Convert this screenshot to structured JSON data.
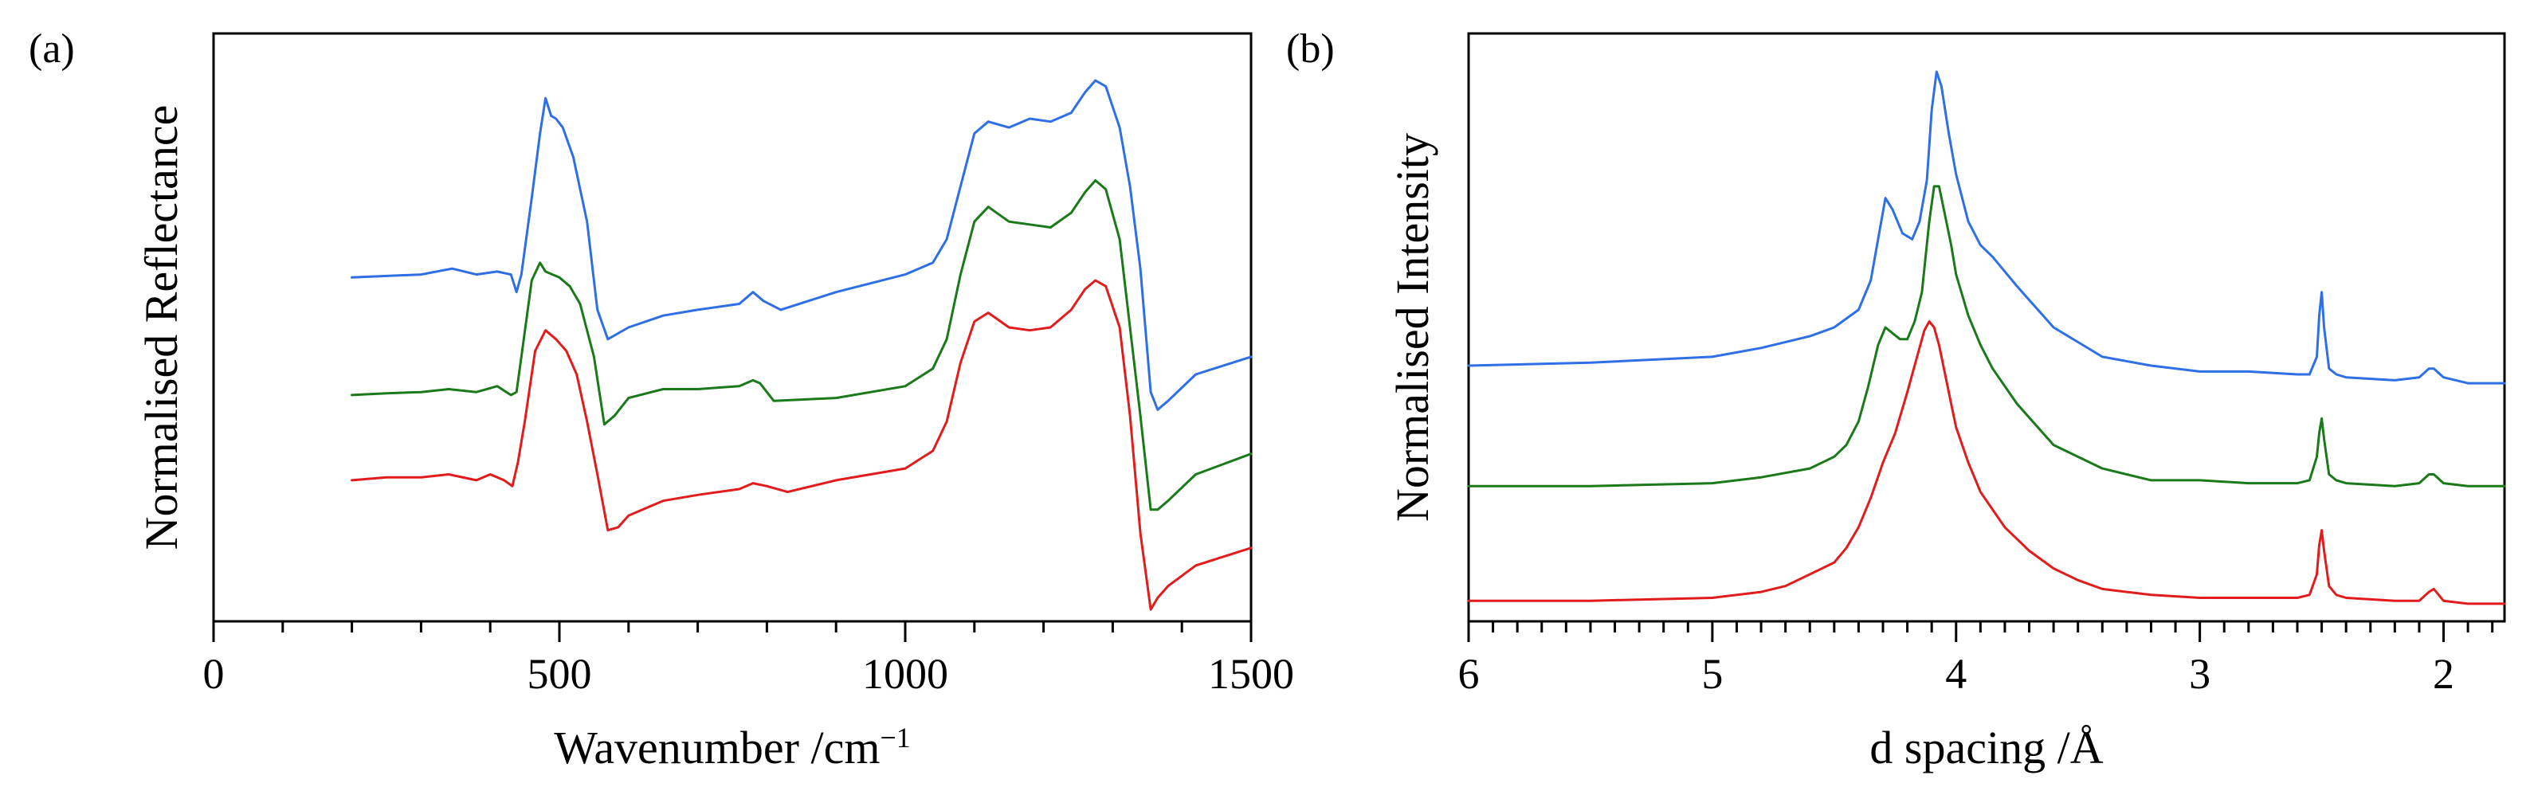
{
  "colors": {
    "blue": "#2e6fe6",
    "green": "#1a7a1a",
    "red": "#e21c1c"
  },
  "chart_data": [
    {
      "id": "a",
      "panel_label": "(a)",
      "type": "line",
      "title": "",
      "xlabel": "Wavenumber /cm",
      "xlabel_sup": "−1",
      "ylabel": "Normalised Reflectance",
      "xlim": [
        0,
        1500
      ],
      "ylim": [
        0,
        10
      ],
      "x_reversed": false,
      "major_ticks": [
        0,
        500,
        1000,
        1500
      ],
      "tick_labels": [
        "0",
        "500",
        "1000",
        "1500"
      ],
      "minor_step": 100,
      "y_ticks": false,
      "grid": false,
      "legend": "none",
      "series": [
        {
          "name": "top (blue)",
          "color": "#2e6fe6",
          "x": [
            200,
            300,
            345,
            380,
            410,
            430,
            438,
            445,
            460,
            472,
            480,
            488,
            495,
            505,
            520,
            540,
            555,
            570,
            600,
            650,
            700,
            760,
            780,
            795,
            820,
            900,
            1000,
            1040,
            1060,
            1080,
            1100,
            1120,
            1150,
            1180,
            1210,
            1240,
            1260,
            1275,
            1290,
            1310,
            1325,
            1340,
            1355,
            1365,
            1380,
            1420,
            1500
          ],
          "y": [
            5.85,
            5.9,
            6.0,
            5.9,
            5.95,
            5.9,
            5.6,
            5.9,
            7.2,
            8.3,
            8.9,
            8.6,
            8.55,
            8.4,
            7.9,
            6.8,
            5.3,
            4.8,
            5.0,
            5.2,
            5.3,
            5.4,
            5.6,
            5.45,
            5.3,
            5.6,
            5.9,
            6.1,
            6.5,
            7.4,
            8.3,
            8.5,
            8.4,
            8.55,
            8.5,
            8.65,
            9.0,
            9.2,
            9.1,
            8.4,
            7.4,
            6.0,
            3.9,
            3.6,
            3.75,
            4.2,
            4.5
          ]
        },
        {
          "name": "middle (green)",
          "color": "#1a7a1a",
          "x": [
            200,
            250,
            300,
            340,
            380,
            410,
            430,
            438,
            445,
            460,
            472,
            480,
            490,
            500,
            515,
            530,
            550,
            565,
            580,
            600,
            650,
            700,
            760,
            780,
            790,
            810,
            900,
            1000,
            1040,
            1060,
            1080,
            1100,
            1120,
            1150,
            1180,
            1210,
            1240,
            1260,
            1275,
            1290,
            1310,
            1325,
            1340,
            1355,
            1365,
            1380,
            1420,
            1500
          ],
          "y": [
            3.85,
            3.88,
            3.9,
            3.95,
            3.9,
            4.0,
            3.85,
            3.9,
            4.5,
            5.8,
            6.1,
            5.95,
            5.9,
            5.85,
            5.7,
            5.4,
            4.5,
            3.35,
            3.5,
            3.8,
            3.95,
            3.95,
            4.0,
            4.1,
            4.05,
            3.75,
            3.8,
            4.0,
            4.3,
            4.8,
            5.9,
            6.8,
            7.05,
            6.8,
            6.75,
            6.7,
            6.95,
            7.3,
            7.5,
            7.35,
            6.5,
            5.0,
            3.5,
            1.9,
            1.9,
            2.05,
            2.5,
            2.85
          ]
        },
        {
          "name": "bottom (red)",
          "color": "#e21c1c",
          "x": [
            200,
            250,
            300,
            340,
            380,
            400,
            420,
            432,
            440,
            450,
            465,
            480,
            495,
            510,
            525,
            540,
            555,
            570,
            585,
            600,
            650,
            700,
            760,
            780,
            800,
            830,
            900,
            1000,
            1040,
            1060,
            1080,
            1100,
            1120,
            1150,
            1180,
            1210,
            1240,
            1260,
            1275,
            1290,
            1310,
            1325,
            1340,
            1355,
            1365,
            1380,
            1420,
            1500
          ],
          "y": [
            2.4,
            2.45,
            2.45,
            2.5,
            2.4,
            2.5,
            2.4,
            2.3,
            2.7,
            3.4,
            4.6,
            4.95,
            4.8,
            4.6,
            4.2,
            3.4,
            2.5,
            1.55,
            1.6,
            1.8,
            2.05,
            2.15,
            2.25,
            2.35,
            2.3,
            2.2,
            2.4,
            2.6,
            2.9,
            3.4,
            4.4,
            5.1,
            5.25,
            5.0,
            4.95,
            5.0,
            5.3,
            5.65,
            5.8,
            5.7,
            5.0,
            3.5,
            1.5,
            0.2,
            0.4,
            0.6,
            0.95,
            1.25
          ]
        }
      ]
    },
    {
      "id": "b",
      "panel_label": "(b)",
      "type": "line",
      "title": "",
      "xlabel": "d spacing /Å",
      "xlabel_sup": "",
      "ylabel": "Normalised Intensity",
      "xlim": [
        6,
        1.75
      ],
      "ylim": [
        0,
        10
      ],
      "x_reversed": true,
      "major_ticks": [
        6,
        5,
        4,
        3,
        2
      ],
      "tick_labels": [
        "6",
        "5",
        "4",
        "3",
        "2"
      ],
      "minor_step": 0.1,
      "y_ticks": false,
      "grid": false,
      "legend": "none",
      "series": [
        {
          "name": "top (blue)",
          "color": "#2e6fe6",
          "x": [
            6.0,
            5.5,
            5.0,
            4.8,
            4.6,
            4.5,
            4.4,
            4.35,
            4.32,
            4.29,
            4.26,
            4.22,
            4.18,
            4.15,
            4.12,
            4.1,
            4.08,
            4.06,
            4.03,
            4.0,
            3.95,
            3.9,
            3.85,
            3.75,
            3.6,
            3.4,
            3.2,
            3.0,
            2.8,
            2.6,
            2.55,
            2.52,
            2.51,
            2.5,
            2.49,
            2.47,
            2.44,
            2.4,
            2.2,
            2.1,
            2.06,
            2.04,
            2.0,
            1.9,
            1.75
          ],
          "y": [
            4.35,
            4.4,
            4.5,
            4.65,
            4.85,
            5.0,
            5.3,
            5.8,
            6.5,
            7.2,
            7.0,
            6.6,
            6.5,
            6.8,
            7.5,
            8.7,
            9.35,
            9.1,
            8.3,
            7.6,
            6.8,
            6.4,
            6.2,
            5.7,
            5.0,
            4.5,
            4.35,
            4.25,
            4.25,
            4.2,
            4.2,
            4.5,
            5.2,
            5.6,
            5.0,
            4.3,
            4.2,
            4.15,
            4.1,
            4.15,
            4.3,
            4.3,
            4.15,
            4.05,
            4.05
          ]
        },
        {
          "name": "middle (green)",
          "color": "#1a7a1a",
          "x": [
            6.0,
            5.5,
            5.0,
            4.8,
            4.6,
            4.5,
            4.45,
            4.4,
            4.36,
            4.32,
            4.29,
            4.26,
            4.23,
            4.2,
            4.17,
            4.14,
            4.11,
            4.09,
            4.07,
            4.05,
            4.02,
            4.0,
            3.95,
            3.9,
            3.85,
            3.75,
            3.6,
            3.4,
            3.2,
            3.0,
            2.8,
            2.6,
            2.55,
            2.52,
            2.51,
            2.5,
            2.49,
            2.47,
            2.44,
            2.4,
            2.2,
            2.1,
            2.06,
            2.04,
            2.0,
            1.9,
            1.75
          ],
          "y": [
            2.3,
            2.3,
            2.35,
            2.45,
            2.6,
            2.8,
            3.0,
            3.4,
            4.0,
            4.7,
            5.0,
            4.9,
            4.8,
            4.8,
            5.1,
            5.6,
            6.8,
            7.4,
            7.4,
            7.0,
            6.4,
            5.9,
            5.2,
            4.7,
            4.3,
            3.7,
            3.0,
            2.6,
            2.4,
            2.4,
            2.35,
            2.35,
            2.4,
            2.8,
            3.2,
            3.45,
            3.1,
            2.5,
            2.4,
            2.35,
            2.3,
            2.35,
            2.5,
            2.5,
            2.35,
            2.3,
            2.3
          ]
        },
        {
          "name": "bottom (red)",
          "color": "#e21c1c",
          "x": [
            6.0,
            5.5,
            5.0,
            4.8,
            4.7,
            4.6,
            4.5,
            4.45,
            4.4,
            4.35,
            4.3,
            4.25,
            4.2,
            4.16,
            4.13,
            4.11,
            4.09,
            4.07,
            4.05,
            4.02,
            4.0,
            3.95,
            3.9,
            3.8,
            3.7,
            3.6,
            3.5,
            3.4,
            3.2,
            3.0,
            2.8,
            2.6,
            2.55,
            2.52,
            2.51,
            2.5,
            2.49,
            2.47,
            2.44,
            2.4,
            2.2,
            2.1,
            2.06,
            2.04,
            2.0,
            1.9,
            1.75
          ],
          "y": [
            0.35,
            0.35,
            0.4,
            0.5,
            0.6,
            0.8,
            1.0,
            1.25,
            1.6,
            2.1,
            2.7,
            3.2,
            3.9,
            4.5,
            4.95,
            5.1,
            5.0,
            4.7,
            4.3,
            3.7,
            3.3,
            2.7,
            2.2,
            1.6,
            1.2,
            0.9,
            0.7,
            0.55,
            0.45,
            0.4,
            0.4,
            0.4,
            0.45,
            0.8,
            1.3,
            1.55,
            1.2,
            0.6,
            0.45,
            0.4,
            0.35,
            0.35,
            0.5,
            0.55,
            0.35,
            0.3,
            0.3
          ]
        }
      ]
    }
  ]
}
